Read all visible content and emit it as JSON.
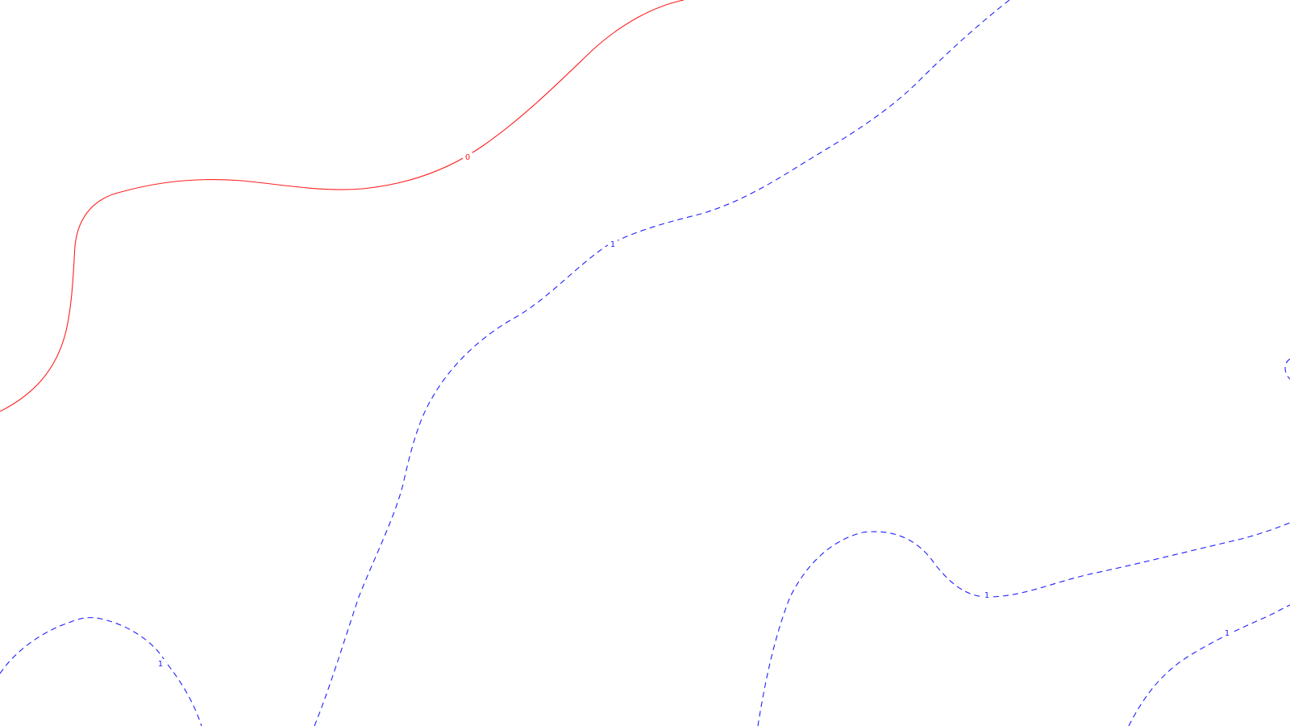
{
  "colors": {
    "background": "#ffffff",
    "contour_zero": "#ff2020",
    "contour_one": "#2020ff"
  },
  "contours": [
    {
      "level_label": "0",
      "style": "solid"
    },
    {
      "level_label": "1",
      "style": "dashed"
    },
    {
      "level_label": "1",
      "style": "dashed"
    },
    {
      "level_label": "1",
      "style": "dashed"
    },
    {
      "level_label": "1",
      "style": "dashed"
    }
  ]
}
